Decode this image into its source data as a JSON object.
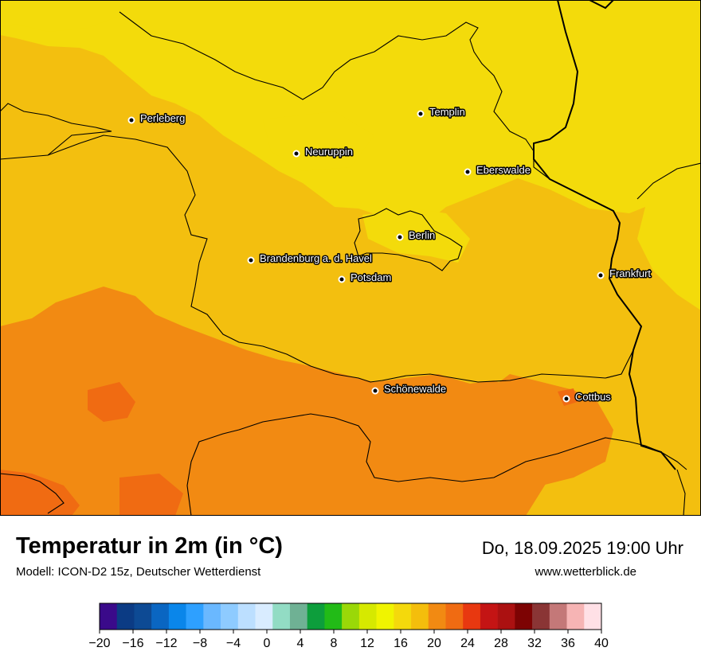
{
  "header": {
    "title": "Temperatur in 2m (in °C)",
    "model": "Modell: ICON-D2 15z, Deutscher Wetterdienst",
    "datetime": "Do, 18.09.2025 19:00 Uhr",
    "website": "www.wetterblick.de"
  },
  "cities": [
    {
      "id": "perleberg",
      "name": "Perleberg"
    },
    {
      "id": "templin",
      "name": "Templin"
    },
    {
      "id": "neuruppin",
      "name": "Neuruppin"
    },
    {
      "id": "eberswalde",
      "name": "Eberswalde"
    },
    {
      "id": "berlin",
      "name": "Berlin"
    },
    {
      "id": "brandenburg",
      "name": "Brandenburg a. d. Havel"
    },
    {
      "id": "potsdam",
      "name": "Potsdam"
    },
    {
      "id": "frankfurt",
      "name": "Frankfurt"
    },
    {
      "id": "schoenewalde",
      "name": "Schönewalde"
    },
    {
      "id": "cottbus",
      "name": "Cottbus"
    }
  ],
  "legend": {
    "ticks": [
      "−20",
      "−16",
      "−12",
      "−8",
      "−4",
      "0",
      "4",
      "8",
      "12",
      "16",
      "20",
      "24",
      "28",
      "32",
      "36",
      "40"
    ],
    "colors": [
      "#3a0a8a",
      "#0b3b84",
      "#0d4a94",
      "#0a66c2",
      "#0a86ea",
      "#2ea0ff",
      "#6ab8ff",
      "#8ecbff",
      "#bcdfff",
      "#d9ecff",
      "#92dcc4",
      "#6fb194",
      "#0d9e3c",
      "#22bb17",
      "#9ad808",
      "#d6e900",
      "#f0f400",
      "#f4d90c",
      "#f4be0c",
      "#f28a12",
      "#f06b12",
      "#e83810",
      "#c41414",
      "#ab1111",
      "#7d0303",
      "#8a3535",
      "#c47878",
      "#f6b4b4",
      "#ffe0e6"
    ]
  },
  "map_colors": {
    "t14_16": "#f3db0b",
    "t16_18": "#f3bf0f",
    "t18_20": "#f28a12",
    "t20_22": "#f06b12",
    "border": "#000000"
  }
}
